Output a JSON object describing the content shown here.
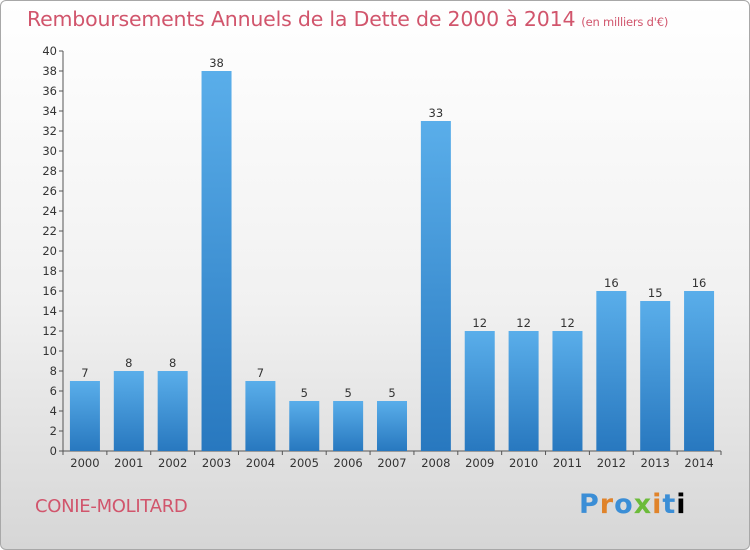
{
  "header": {
    "title": "Remboursements Annuels de la Dette de 2000 à 2014",
    "subtitle": "(en milliers d'€)"
  },
  "footer": {
    "city": "CONIE-MOLITARD",
    "logo_text": "Proxiti"
  },
  "colors": {
    "title": "#d1556c",
    "bar_light": "#5aaeea",
    "bar_dark": "#2878bf"
  },
  "chart_data": {
    "type": "bar",
    "categories": [
      "2000",
      "2001",
      "2002",
      "2003",
      "2004",
      "2005",
      "2006",
      "2007",
      "2008",
      "2009",
      "2010",
      "2011",
      "2012",
      "2013",
      "2014"
    ],
    "values": [
      7,
      8,
      8,
      38,
      7,
      5,
      5,
      5,
      33,
      12,
      12,
      12,
      16,
      15,
      16
    ],
    "title": "Remboursements Annuels de la Dette de 2000 à 2014",
    "subtitle": "(en milliers d'€)",
    "xlabel": "",
    "ylabel": "",
    "ylim": [
      0,
      40
    ],
    "ytick_step": 2,
    "grid": false,
    "legend": "none"
  }
}
